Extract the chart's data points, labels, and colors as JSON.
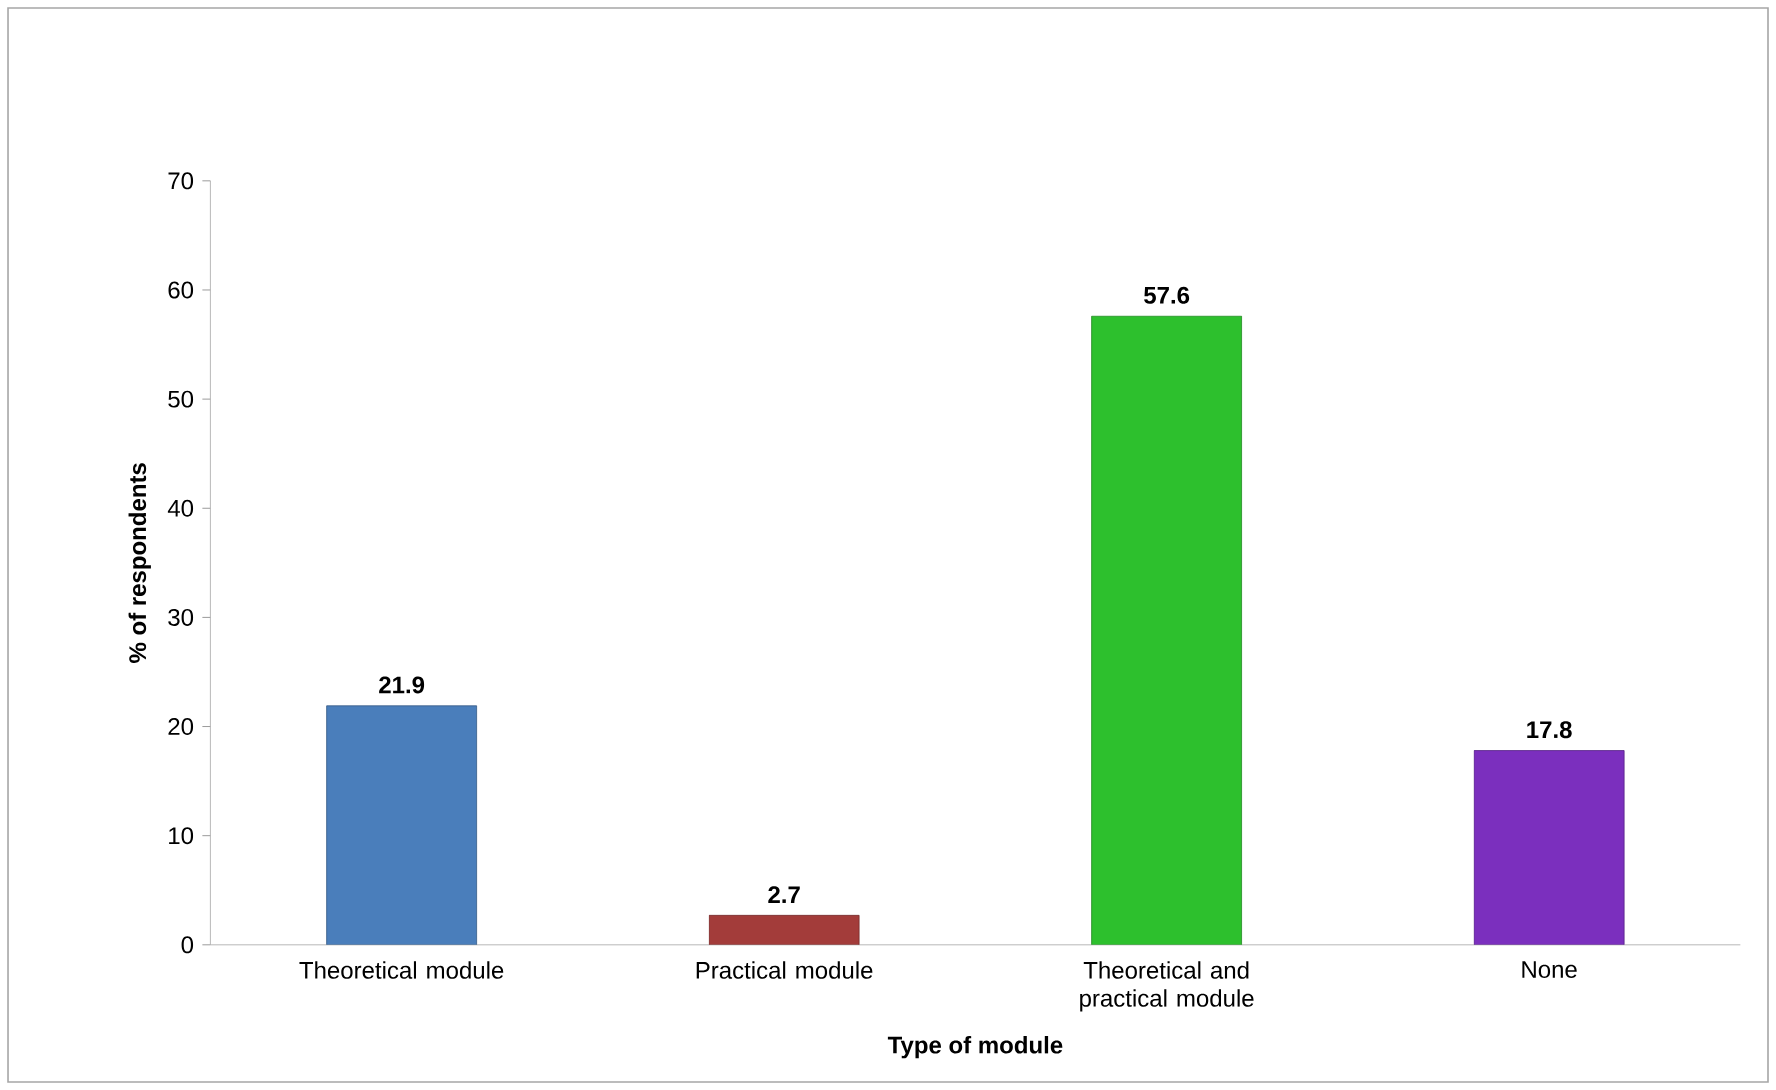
{
  "chart_data": {
    "type": "bar",
    "xlabel": "Type of module",
    "ylabel": "% of respondents",
    "categories": [
      "Theoretical module",
      "Practical module",
      "Theoretical and practical module",
      "None"
    ],
    "values": [
      21.9,
      2.7,
      57.6,
      17.8
    ],
    "colors": [
      "#4a7ebb",
      "#a33c3a",
      "#2dc02d",
      "#7b2fbe"
    ],
    "ylim": [
      0,
      70
    ],
    "yticks": [
      0,
      10,
      20,
      30,
      40,
      50,
      60,
      70
    ],
    "data_labels": true
  }
}
